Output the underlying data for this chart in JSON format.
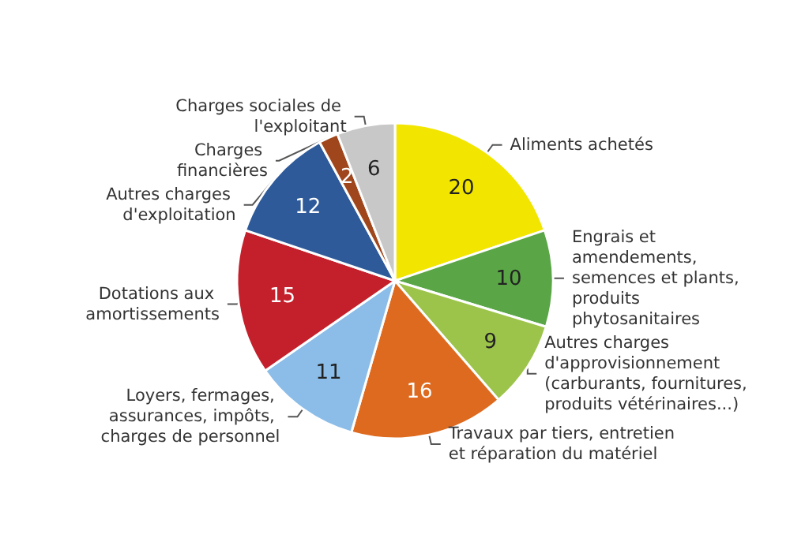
{
  "chart_data": {
    "type": "pie",
    "categories": [
      "Aliments achetés",
      "Engrais et amendements, semences et plants, produits phytosanitaires",
      "Autres charges d'approvisionnement (carburants, fournitures, produits vétérinaires...)",
      "Travaux par tiers, entretien et réparation du matériel",
      "Loyers, fermages, assurances, impôts, charges de personnel",
      "Dotations aux amortissements",
      "Autres charges d'exploitation",
      "Charges financières",
      "Charges sociales de l'exploitant"
    ],
    "values": [
      20,
      10,
      9,
      16,
      11,
      15,
      12,
      2,
      6
    ],
    "colors": [
      "#f2e600",
      "#5aa646",
      "#9dc44a",
      "#dd6a1f",
      "#8cbde8",
      "#c4202b",
      "#2e5a9a",
      "#a0461c",
      "#c8c8c8"
    ],
    "data_labels": true
  }
}
